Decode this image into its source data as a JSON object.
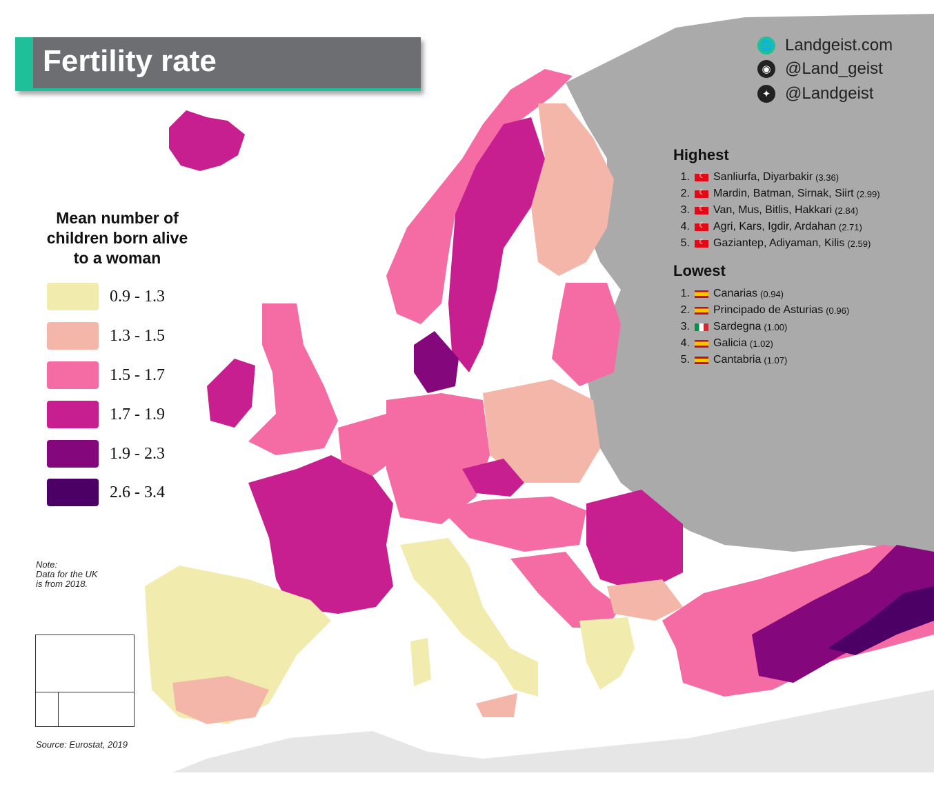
{
  "title": "Fertility rate",
  "social": {
    "website": "Landgeist.com",
    "instagram": "@Land_geist",
    "twitter": "@Landgeist"
  },
  "legend": {
    "title_lines": [
      "Mean number of",
      "children born alive",
      "to a woman"
    ],
    "items": [
      {
        "label": "0.9 - 1.3",
        "color": "#f1ecae"
      },
      {
        "label": "1.3 - 1.5",
        "color": "#f4b6a8"
      },
      {
        "label": "1.5 - 1.7",
        "color": "#f56ba4"
      },
      {
        "label": "1.7 - 1.9",
        "color": "#c71f8f"
      },
      {
        "label": "1.9 - 2.3",
        "color": "#84087b"
      },
      {
        "label": "2.6 - 3.4",
        "color": "#4c0066"
      }
    ]
  },
  "highest": {
    "heading": "Highest",
    "items": [
      {
        "rank": "1.",
        "region": "Sanliurfa, Diyarbakir",
        "value": "(3.36)",
        "flag": "tr"
      },
      {
        "rank": "2.",
        "region": "Mardin, Batman, Sirnak, Siirt",
        "value": "(2.99)",
        "flag": "tr"
      },
      {
        "rank": "3.",
        "region": "Van, Mus, Bitlis, Hakkari",
        "value": "(2.84)",
        "flag": "tr"
      },
      {
        "rank": "4.",
        "region": "Agri, Kars, Igdir, Ardahan",
        "value": "(2.71)",
        "flag": "tr"
      },
      {
        "rank": "5.",
        "region": "Gaziantep, Adiyaman, Kilis",
        "value": "(2.59)",
        "flag": "tr"
      }
    ]
  },
  "lowest": {
    "heading": "Lowest",
    "items": [
      {
        "rank": "1.",
        "region": "Canarias",
        "value": "(0.94)",
        "flag": "es"
      },
      {
        "rank": "2.",
        "region": "Principado de Asturias",
        "value": "(0.96)",
        "flag": "es"
      },
      {
        "rank": "3.",
        "region": "Sardegna",
        "value": "(1.00)",
        "flag": "it"
      },
      {
        "rank": "4.",
        "region": "Galicia",
        "value": "(1.02)",
        "flag": "es"
      },
      {
        "rank": "5.",
        "region": "Cantabria",
        "value": "(1.07)",
        "flag": "es"
      }
    ]
  },
  "note_lines": [
    "Note:",
    "Data for the UK",
    "is from 2018."
  ],
  "source": "Source: Eurostat, 2019",
  "colors": {
    "no_data": "#aaaaaa",
    "background_land": "#e6e6e6",
    "accent": "#1fbf9a"
  }
}
